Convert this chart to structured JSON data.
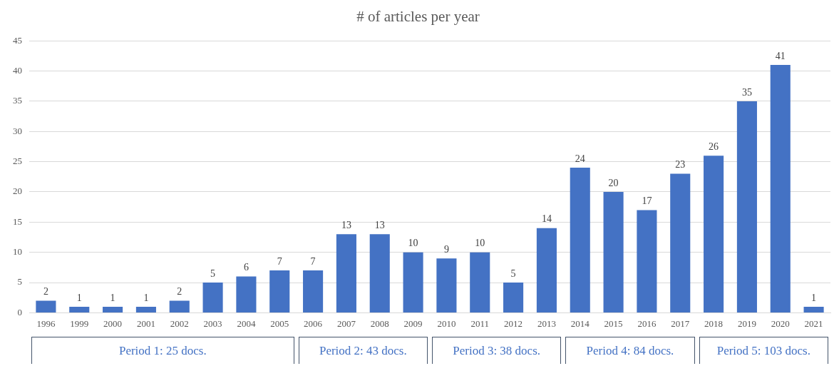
{
  "chart_data": {
    "type": "bar",
    "title": "# of articles per year",
    "categories": [
      "1996",
      "1999",
      "2000",
      "2001",
      "2002",
      "2003",
      "2004",
      "2005",
      "2006",
      "2007",
      "2008",
      "2009",
      "2010",
      "2011",
      "2012",
      "2013",
      "2014",
      "2015",
      "2016",
      "2017",
      "2018",
      "2019",
      "2020",
      "2021"
    ],
    "values": [
      2,
      1,
      1,
      1,
      2,
      5,
      6,
      7,
      7,
      13,
      13,
      10,
      9,
      10,
      5,
      14,
      24,
      20,
      17,
      23,
      26,
      35,
      41,
      1
    ],
    "color": "#4472c4",
    "ylim": [
      0,
      45
    ],
    "yticks": [
      0,
      5,
      10,
      15,
      20,
      25,
      30,
      35,
      40,
      45
    ],
    "grid": "y",
    "data_labels": true,
    "legend": false,
    "annotations": [
      "Period 1: 25 docs.",
      "Period 2: 43 docs.",
      "Period 3: 38 docs.",
      "Period 4: 84 docs.",
      "Period 5: 103 docs."
    ]
  }
}
